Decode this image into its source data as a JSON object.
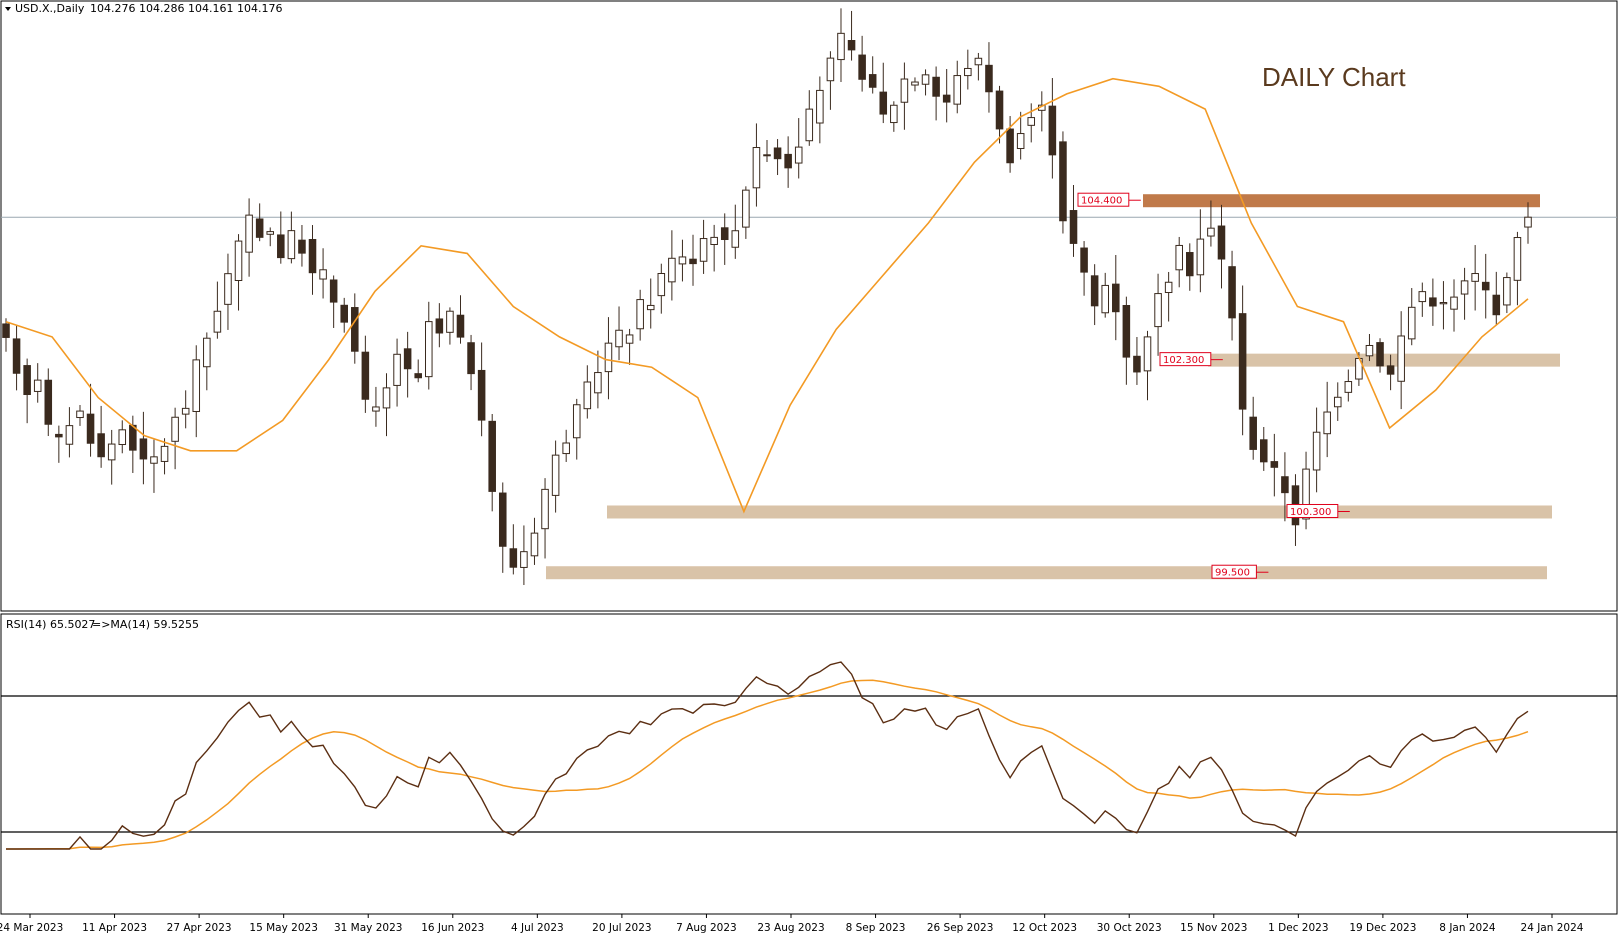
{
  "header": {
    "symbol_label": "USD.X.,Daily",
    "ohlc": "104.276 104.286 104.161 104.176"
  },
  "chart_title": "DAILY Chart",
  "rsi_header": {
    "label": "RSI(14) 65.5027",
    "ma_label": "=>MA(14) 59.5255"
  },
  "colors": {
    "bull_fill": "#ffffff",
    "bear_fill": "#3a2a1e",
    "candle_outline": "#3a2a1e",
    "ma_line": "#f39a24",
    "rsi_line": "#5b2e12",
    "zone_light": "#d9c3a8",
    "zone_dark": "#c07a4a",
    "price_label_text": "#e0001b",
    "current_price_line": "#9aa7b0"
  },
  "levels": [
    {
      "label": "104.400",
      "price": 104.4,
      "zone": "dark"
    },
    {
      "label": "102.300",
      "price": 102.3,
      "zone": "light"
    },
    {
      "label": "100.300",
      "price": 100.3,
      "zone": "light"
    },
    {
      "label": "99.500",
      "price": 99.5,
      "zone": "light"
    }
  ],
  "x_axis_labels": [
    "24 Mar 2023",
    "11 Apr 2023",
    "27 Apr 2023",
    "15 May 2023",
    "31 May 2023",
    "16 Jun 2023",
    "4 Jul 2023",
    "20 Jul 2023",
    "7 Aug 2023",
    "23 Aug 2023",
    "8 Sep 2023",
    "26 Sep 2023",
    "12 Oct 2023",
    "30 Oct 2023",
    "15 Nov 2023",
    "1 Dec 2023",
    "19 Dec 2023",
    "8 Jan 2024",
    "24 Jan 2024"
  ],
  "chart_data": {
    "type": "candlestick",
    "symbol": "USD.X.",
    "timeframe": "Daily",
    "x_start": "24 Mar 2023",
    "x_end": "31 Jan 2024",
    "price_range": [
      99.2,
      106.8
    ],
    "last_close": 104.176,
    "price_path": [
      102.5,
      102.2,
      101.9,
      102.1,
      101.4,
      101.2,
      101.5,
      101.6,
      101.3,
      101.0,
      101.2,
      101.4,
      101.2,
      100.9,
      101.0,
      101.2,
      101.5,
      101.7,
      102.2,
      102.6,
      103.0,
      103.4,
      103.8,
      104.1,
      104.0,
      104.0,
      103.7,
      103.9,
      103.8,
      103.4,
      103.4,
      103.1,
      102.9,
      102.4,
      101.7,
      101.6,
      101.9,
      102.4,
      102.1,
      102.0,
      102.8,
      102.6,
      102.9,
      102.5,
      102.2,
      101.4,
      100.6,
      99.8,
      99.6,
      99.8,
      100.1,
      100.6,
      101.0,
      101.3,
      101.6,
      101.9,
      102.2,
      102.5,
      102.6,
      102.7,
      103.0,
      103.1,
      103.4,
      103.6,
      103.7,
      103.6,
      103.9,
      104.0,
      103.8,
      104.1,
      104.6,
      105.0,
      105.1,
      105.0,
      104.9,
      105.2,
      105.5,
      105.9,
      106.2,
      106.5,
      106.3,
      106.1,
      105.8,
      105.5,
      105.7,
      106.0,
      106.0,
      106.1,
      105.8,
      105.7,
      106.0,
      106.2,
      106.2,
      105.9,
      105.3,
      105.0,
      105.3,
      105.5,
      105.6,
      105.1,
      104.2,
      103.8,
      103.4,
      103.0,
      103.3,
      103.0,
      102.4,
      102.1,
      102.7,
      103.1,
      103.4,
      103.7,
      103.5,
      103.9,
      104.0,
      103.6,
      102.9,
      101.6,
      101.2,
      101.0,
      100.8,
      100.6,
      100.2,
      100.8,
      101.3,
      101.6,
      101.9,
      102.1,
      102.4,
      102.5,
      102.3,
      102.1,
      102.6,
      103.0,
      103.2,
      103.1,
      103.0,
      103.1,
      103.3,
      103.4,
      103.2,
      103.0,
      103.3,
      104.0,
      104.2
    ],
    "moving_average": {
      "description": "orange moving average line",
      "approx_values": [
        102.8,
        102.6,
        101.8,
        101.3,
        101.1,
        101.1,
        101.5,
        102.3,
        103.2,
        103.8,
        103.7,
        103.0,
        102.6,
        102.3,
        102.2,
        101.8,
        100.3,
        101.7,
        102.7,
        103.4,
        104.1,
        104.9,
        105.5,
        105.8,
        106.0,
        105.9,
        105.6,
        104.1,
        103.0,
        102.8,
        101.4,
        101.9,
        102.6,
        103.1
      ]
    },
    "rsi": {
      "period": 14,
      "current": 65.5027,
      "ma_period": 14,
      "ma_current": 59.5255,
      "levels": [
        70,
        30
      ],
      "range": [
        10,
        90
      ]
    }
  }
}
